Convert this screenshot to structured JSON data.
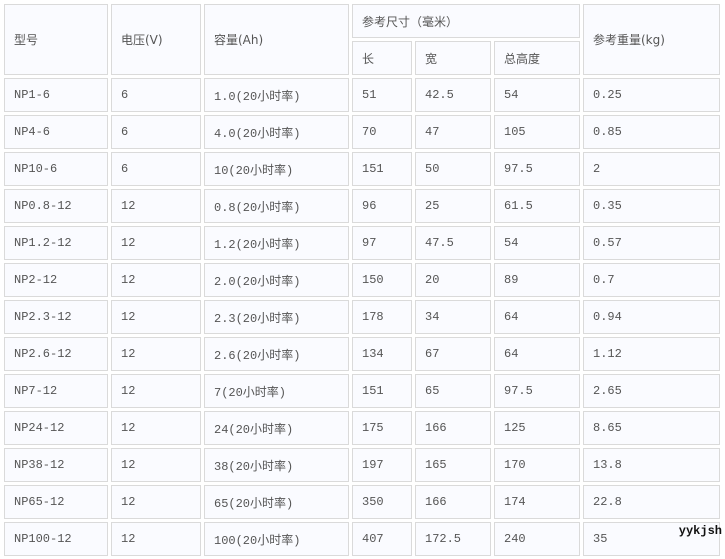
{
  "headers": {
    "model": "型号",
    "voltage": "电压(V)",
    "capacity": "容量(Ah)",
    "dimensions": "参考尺寸（毫米）",
    "length": "长",
    "width": "宽",
    "height": "总高度",
    "weight": "参考重量(kg)"
  },
  "rows": [
    [
      "NP1-6",
      "6",
      "1.0(20小时率)",
      "51",
      "42.5",
      "54",
      "0.25"
    ],
    [
      "NP4-6",
      "6",
      "4.0(20小时率)",
      "70",
      "47",
      "105",
      "0.85"
    ],
    [
      "NP10-6",
      "6",
      "10(20小时率)",
      "151",
      "50",
      "97.5",
      "2"
    ],
    [
      "NP0.8-12",
      "12",
      "0.8(20小时率)",
      "96",
      "25",
      "61.5",
      "0.35"
    ],
    [
      "NP1.2-12",
      "12",
      "1.2(20小时率)",
      "97",
      "47.5",
      "54",
      "0.57"
    ],
    [
      "NP2-12",
      "12",
      "2.0(20小时率)",
      "150",
      "20",
      "89",
      "0.7"
    ],
    [
      "NP2.3-12",
      "12",
      "2.3(20小时率)",
      "178",
      "34",
      "64",
      "0.94"
    ],
    [
      "NP2.6-12",
      "12",
      "2.6(20小时率)",
      "134",
      "67",
      "64",
      "1.12"
    ],
    [
      "NP7-12",
      "12",
      "7(20小时率)",
      "151",
      "65",
      "97.5",
      "2.65"
    ],
    [
      "NP24-12",
      "12",
      "24(20小时率)",
      "175",
      "166",
      "125",
      "8.65"
    ],
    [
      "NP38-12",
      "12",
      "38(20小时率)",
      "197",
      "165",
      "170",
      "13.8"
    ],
    [
      "NP65-12",
      "12",
      "65(20小时率)",
      "350",
      "166",
      "174",
      "22.8"
    ],
    [
      "NP100-12",
      "12",
      "100(20小时率)",
      "407",
      "172.5",
      "240",
      "35"
    ]
  ],
  "watermark": "yykjsh"
}
